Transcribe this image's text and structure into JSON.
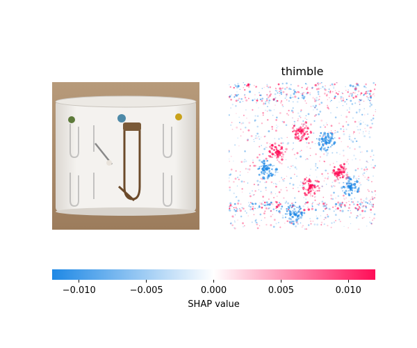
{
  "figure": {
    "class_title": "thimble",
    "colorbar": {
      "label": "SHAP value",
      "range": [
        -0.012,
        0.012
      ],
      "ticks": [
        {
          "value": -0.01,
          "label": "−0.010"
        },
        {
          "value": -0.005,
          "label": "−0.005"
        },
        {
          "value": 0.0,
          "label": "0.000"
        },
        {
          "value": 0.005,
          "label": "0.005"
        },
        {
          "value": 0.01,
          "label": "0.010"
        }
      ],
      "colors": {
        "negative": "#1e88e5",
        "neutral": "#ffffff",
        "positive": "#ff0d57"
      }
    }
  }
}
